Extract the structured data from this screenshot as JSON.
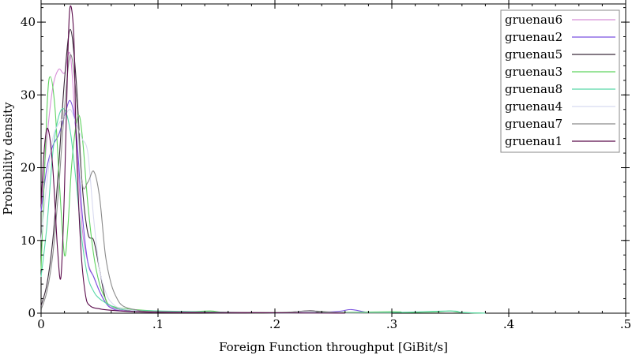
{
  "chart_data": {
    "type": "line",
    "title": "",
    "xlabel": "Foreign Function throughput [GiBit/s]",
    "ylabel": "Probability density",
    "xlim": [
      0,
      0.5
    ],
    "ylim": [
      0,
      42.5
    ],
    "x_ticks": [
      {
        "value": 0,
        "label": "0"
      },
      {
        "value": 0.1,
        "label": ".1"
      },
      {
        "value": 0.2,
        "label": ".2"
      },
      {
        "value": 0.3,
        "label": ".3"
      },
      {
        "value": 0.4,
        "label": ".4"
      },
      {
        "value": 0.5,
        "label": ".5"
      }
    ],
    "y_ticks": [
      {
        "value": 0,
        "label": "0"
      },
      {
        "value": 10,
        "label": "10"
      },
      {
        "value": 20,
        "label": "20"
      },
      {
        "value": 30,
        "label": "30"
      },
      {
        "value": 40,
        "label": "40"
      }
    ],
    "grid": false,
    "legend_position": "top-right",
    "series": [
      {
        "name": "gruenau6",
        "color": "#d88fd8",
        "points": [
          [
            0,
            14
          ],
          [
            0.005,
            24
          ],
          [
            0.01,
            31
          ],
          [
            0.015,
            33.5
          ],
          [
            0.02,
            33
          ],
          [
            0.025,
            35.5
          ],
          [
            0.03,
            24
          ],
          [
            0.035,
            12
          ],
          [
            0.04,
            7
          ],
          [
            0.045,
            5
          ],
          [
            0.05,
            3
          ],
          [
            0.055,
            1.5
          ],
          [
            0.06,
            0.8
          ],
          [
            0.07,
            0.4
          ],
          [
            0.08,
            0.2
          ],
          [
            0.1,
            0.1
          ],
          [
            0.15,
            0.05
          ],
          [
            0.25,
            0.05
          ],
          [
            0.3,
            0
          ]
        ]
      },
      {
        "name": "gruenau2",
        "color": "#7a52e0",
        "points": [
          [
            0,
            14
          ],
          [
            0.005,
            20
          ],
          [
            0.01,
            23
          ],
          [
            0.015,
            24.5
          ],
          [
            0.02,
            27
          ],
          [
            0.025,
            29.2
          ],
          [
            0.03,
            25
          ],
          [
            0.035,
            14
          ],
          [
            0.04,
            7
          ],
          [
            0.045,
            5
          ],
          [
            0.05,
            3
          ],
          [
            0.055,
            1.5
          ],
          [
            0.06,
            0.7
          ],
          [
            0.07,
            0.3
          ],
          [
            0.1,
            0.2
          ],
          [
            0.2,
            0.05
          ],
          [
            0.25,
            0.2
          ],
          [
            0.265,
            0.5
          ],
          [
            0.28,
            0.1
          ],
          [
            0.3,
            0
          ]
        ]
      },
      {
        "name": "gruenau5",
        "color": "#3a2a3a",
        "points": [
          [
            0,
            1
          ],
          [
            0.005,
            4
          ],
          [
            0.01,
            10
          ],
          [
            0.015,
            20
          ],
          [
            0.02,
            32
          ],
          [
            0.025,
            39
          ],
          [
            0.03,
            32
          ],
          [
            0.035,
            18
          ],
          [
            0.04,
            11
          ],
          [
            0.045,
            10
          ],
          [
            0.05,
            6
          ],
          [
            0.055,
            2
          ],
          [
            0.06,
            1
          ],
          [
            0.07,
            0.5
          ],
          [
            0.09,
            0.2
          ],
          [
            0.12,
            0.1
          ],
          [
            0.2,
            0.05
          ],
          [
            0.23,
            0.35
          ],
          [
            0.24,
            0.1
          ],
          [
            0.27,
            0
          ]
        ]
      },
      {
        "name": "gruenau3",
        "color": "#5fd35f",
        "points": [
          [
            0,
            6
          ],
          [
            0.005,
            28
          ],
          [
            0.008,
            32.5
          ],
          [
            0.012,
            28
          ],
          [
            0.016,
            17
          ],
          [
            0.02,
            8
          ],
          [
            0.023,
            12
          ],
          [
            0.026,
            20
          ],
          [
            0.03,
            26
          ],
          [
            0.033,
            27
          ],
          [
            0.036,
            23
          ],
          [
            0.04,
            15
          ],
          [
            0.045,
            8
          ],
          [
            0.05,
            4
          ],
          [
            0.055,
            2
          ],
          [
            0.06,
            1
          ],
          [
            0.08,
            0.5
          ],
          [
            0.12,
            0.2
          ],
          [
            0.145,
            0.3
          ],
          [
            0.16,
            0.1
          ],
          [
            0.22,
            0.05
          ],
          [
            0.3,
            0.2
          ],
          [
            0.31,
            0.1
          ],
          [
            0.34,
            0.2
          ],
          [
            0.35,
            0.3
          ],
          [
            0.36,
            0.1
          ],
          [
            0.38,
            0
          ]
        ]
      },
      {
        "name": "gruenau8",
        "color": "#58d8a8",
        "points": [
          [
            0,
            5
          ],
          [
            0.005,
            12
          ],
          [
            0.01,
            22
          ],
          [
            0.015,
            27
          ],
          [
            0.02,
            28
          ],
          [
            0.025,
            25
          ],
          [
            0.03,
            18
          ],
          [
            0.035,
            10
          ],
          [
            0.04,
            5
          ],
          [
            0.045,
            3
          ],
          [
            0.05,
            2
          ],
          [
            0.06,
            1
          ],
          [
            0.07,
            0.5
          ],
          [
            0.1,
            0.3
          ],
          [
            0.2,
            0.05
          ],
          [
            0.3,
            0.1
          ],
          [
            0.35,
            0.3
          ],
          [
            0.36,
            0.1
          ],
          [
            0.38,
            0
          ]
        ]
      },
      {
        "name": "gruenau4",
        "color": "#d8daf0",
        "points": [
          [
            0,
            10
          ],
          [
            0.005,
            18
          ],
          [
            0.01,
            24
          ],
          [
            0.015,
            26
          ],
          [
            0.02,
            27
          ],
          [
            0.025,
            28
          ],
          [
            0.03,
            26
          ],
          [
            0.035,
            24
          ],
          [
            0.04,
            22
          ],
          [
            0.045,
            13
          ],
          [
            0.05,
            6
          ],
          [
            0.055,
            3
          ],
          [
            0.06,
            1.5
          ],
          [
            0.07,
            0.6
          ],
          [
            0.1,
            0.2
          ],
          [
            0.2,
            0.05
          ],
          [
            0.3,
            0
          ]
        ]
      },
      {
        "name": "gruenau7",
        "color": "#8a8a8a",
        "points": [
          [
            0,
            0.5
          ],
          [
            0.005,
            3
          ],
          [
            0.01,
            8
          ],
          [
            0.015,
            17
          ],
          [
            0.02,
            28
          ],
          [
            0.025,
            35.5
          ],
          [
            0.03,
            30
          ],
          [
            0.035,
            18
          ],
          [
            0.04,
            18
          ],
          [
            0.045,
            19.5
          ],
          [
            0.05,
            16
          ],
          [
            0.055,
            8
          ],
          [
            0.06,
            4
          ],
          [
            0.065,
            2
          ],
          [
            0.07,
            1
          ],
          [
            0.08,
            0.5
          ],
          [
            0.1,
            0.2
          ],
          [
            0.2,
            0.1
          ],
          [
            0.23,
            0.3
          ],
          [
            0.26,
            0.05
          ],
          [
            0.3,
            0
          ]
        ]
      },
      {
        "name": "gruenau1",
        "color": "#5a0a4a",
        "points": [
          [
            0,
            15
          ],
          [
            0.003,
            23
          ],
          [
            0.006,
            25.3
          ],
          [
            0.01,
            20
          ],
          [
            0.014,
            9
          ],
          [
            0.017,
            5
          ],
          [
            0.02,
            17
          ],
          [
            0.023,
            36
          ],
          [
            0.025,
            42.2
          ],
          [
            0.028,
            38
          ],
          [
            0.03,
            24
          ],
          [
            0.034,
            9
          ],
          [
            0.038,
            2.5
          ],
          [
            0.042,
            1
          ],
          [
            0.05,
            0.6
          ],
          [
            0.06,
            0.4
          ],
          [
            0.08,
            0.2
          ],
          [
            0.12,
            0.1
          ],
          [
            0.2,
            0.05
          ],
          [
            0.26,
            0
          ]
        ]
      }
    ]
  }
}
